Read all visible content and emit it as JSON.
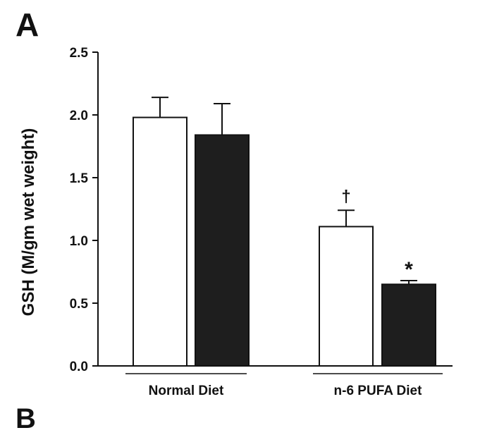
{
  "panel_label": "A",
  "next_panel_label": "B",
  "chart_data": {
    "type": "bar",
    "title": "",
    "ylabel": "GSH (M/gm wet weight)",
    "xlabel": "",
    "ylim": [
      0,
      2.5
    ],
    "yticks": [
      "0.0",
      "0.5",
      "1.0",
      "1.5",
      "2.0",
      "2.5"
    ],
    "groups": [
      "Normal Diet",
      "n-6 PUFA Diet"
    ],
    "series": [
      {
        "fill": "#ffffff",
        "values": [
          1.98,
          1.11
        ],
        "errors": [
          0.16,
          0.13
        ],
        "annotations": [
          "",
          "†"
        ]
      },
      {
        "fill": "#1e1e1e",
        "values": [
          1.84,
          0.65
        ],
        "errors": [
          0.25,
          0.03
        ],
        "annotations": [
          "",
          "*"
        ]
      }
    ]
  }
}
